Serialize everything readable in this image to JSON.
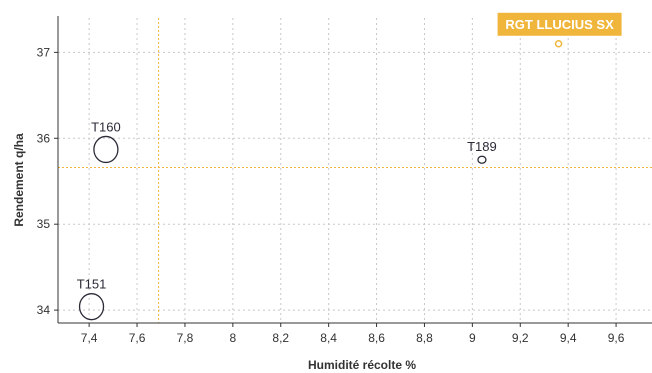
{
  "chart_data": {
    "type": "scatter",
    "title": "",
    "xlabel": "Humidité récolte %",
    "ylabel": "Rendement  q/ha",
    "xlim": [
      7.27,
      9.75
    ],
    "ylim": [
      33.85,
      37.4
    ],
    "x_ticks": [
      7.4,
      7.6,
      7.8,
      8,
      8.2,
      8.4,
      8.6,
      8.8,
      9,
      9.2,
      9.4,
      9.6
    ],
    "x_tick_labels": [
      "7,4",
      "7,6",
      "7,8",
      "8",
      "8,2",
      "8,4",
      "8,6",
      "8,8",
      "9",
      "9,2",
      "9,4",
      "9,6"
    ],
    "y_ticks": [
      34,
      35,
      36,
      37
    ],
    "y_tick_labels": [
      "34",
      "35",
      "36",
      "37"
    ],
    "grid": true,
    "points": [
      {
        "label": "T160",
        "x": 7.47,
        "y": 35.87,
        "size": "large"
      },
      {
        "label": "T151",
        "x": 7.41,
        "y": 34.04,
        "size": "large"
      },
      {
        "label": "T189",
        "x": 9.04,
        "y": 35.75,
        "size": "small"
      },
      {
        "label": "RGT LLUCIUS SX",
        "x": 9.36,
        "y": 37.1,
        "size": "small",
        "highlight": true
      }
    ],
    "reference_lines": {
      "x": 7.69,
      "y": 35.66
    },
    "colors": {
      "points": "#2b2b38",
      "highlight": "#f0b63c",
      "grid": "#c8c8c8",
      "axis": "#333333"
    }
  }
}
